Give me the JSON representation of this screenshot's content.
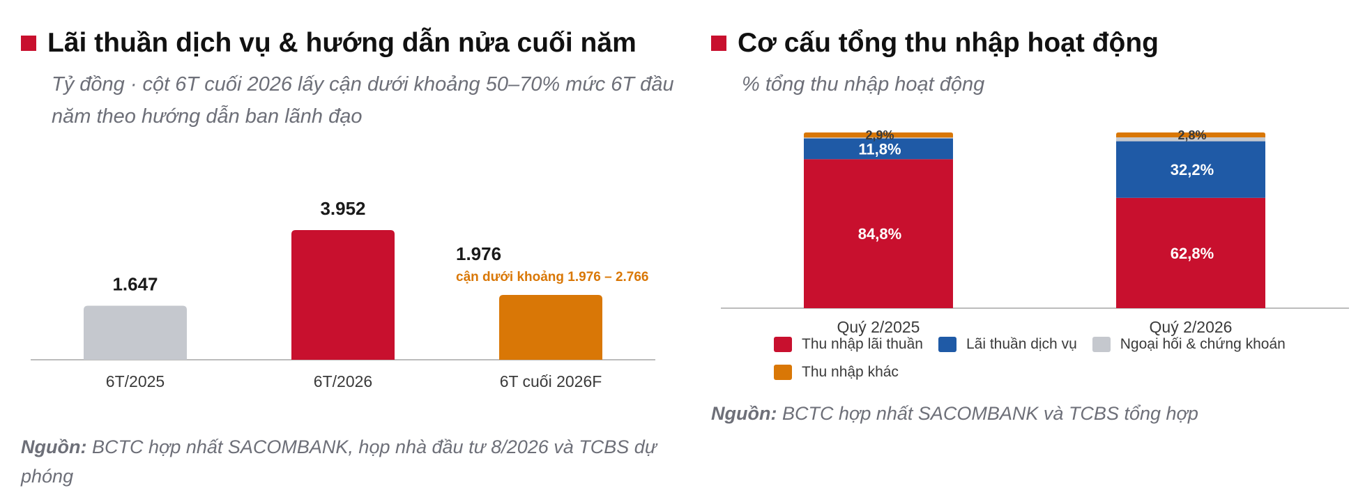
{
  "left": {
    "title": "Lãi thuần dịch vụ & hướng dẫn nửa cuối năm",
    "subtitle": "Tỷ đồng · cột 6T cuối 2026 lấy cận dưới khoảng 50–70% mức 6T đầu năm theo hướng dẫn ban lãnh đạo",
    "source_label": "Nguồn:",
    "source_text": "BCTC hợp nhất SACOMBANK, họp nhà đầu tư 8/2026 và TCBS dự phóng",
    "marker_color": "#c8102e"
  },
  "right": {
    "title": "Cơ cấu tổng thu nhập hoạt động",
    "subtitle": "% tổng thu nhập hoạt động",
    "source_label": "Nguồn:",
    "source_text": "BCTC hợp nhất SACOMBANK và TCBS tổng hợp",
    "marker_color": "#c8102e"
  },
  "chart_data": [
    {
      "type": "bar",
      "categories": [
        "6T/2025",
        "6T/2026",
        "6T cuối 2026F"
      ],
      "values": [
        1647,
        3952,
        1976
      ],
      "value_labels": [
        "1.647",
        "3.952",
        "1.976"
      ],
      "colors": [
        "#c5c8ce",
        "#c8102e",
        "#d97706"
      ],
      "annotation": {
        "category": "6T cuối 2026F",
        "text": "cận dưới khoảng 1.976 – 2.766",
        "color": "#d97706"
      },
      "ylim": [
        0,
        4400
      ],
      "grid": false
    },
    {
      "type": "bar",
      "stacked": true,
      "categories": [
        "Quý 2/2025",
        "Quý 2/2026"
      ],
      "series": [
        {
          "name": "Thu nhập lãi thuần",
          "color": "#c8102e",
          "values": [
            84.8,
            62.8
          ],
          "labels": [
            "84,8%",
            "62,8%"
          ]
        },
        {
          "name": "Lãi thuần dịch vụ",
          "color": "#1f5aa6",
          "values": [
            11.8,
            32.2
          ],
          "labels": [
            "11,8%",
            "32,2%"
          ]
        },
        {
          "name": "Ngoại hối & chứng khoán",
          "color": "#c5c8ce",
          "values": [
            0.5,
            2.2
          ],
          "labels": [
            "",
            ""
          ]
        },
        {
          "name": "Thu nhập khác",
          "color": "#d97706",
          "values": [
            2.9,
            2.8
          ],
          "labels": [
            "2,9%",
            "2,8%"
          ]
        }
      ],
      "ylim": [
        0,
        100
      ],
      "legend_position": "bottom",
      "grid": false
    }
  ]
}
